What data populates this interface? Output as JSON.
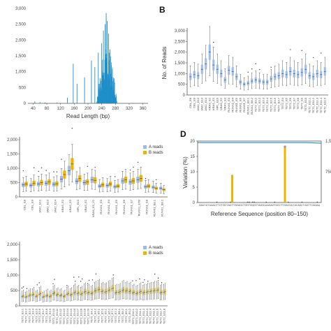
{
  "colors": {
    "blue": "#1f8fc8",
    "box_blue": "#9dbde6",
    "box_yellow": "#f0b400",
    "median": "#2c3e70",
    "line": "#1f8fc8"
  },
  "chart_data": [
    {
      "id": "A",
      "type": "bar",
      "panel_label": "",
      "xlabel": "Read Length (bp)",
      "ylabel": "",
      "xlim": [
        25,
        375
      ],
      "ylim": [
        0,
        3000
      ],
      "xticks": [
        40,
        80,
        120,
        160,
        200,
        240,
        280,
        320,
        360
      ],
      "yticks": [
        0,
        500,
        1000,
        1500,
        2000,
        2500,
        3000
      ],
      "ytick_labels": [
        "0",
        "500",
        "1,000",
        "1,500",
        "2,000",
        "2,500",
        "3,000"
      ],
      "spikes": [
        {
          "x": 45,
          "y": 60
        },
        {
          "x": 60,
          "y": 40
        },
        {
          "x": 75,
          "y": 30
        },
        {
          "x": 110,
          "y": 30
        },
        {
          "x": 140,
          "y": 180
        },
        {
          "x": 157,
          "y": 1250
        },
        {
          "x": 168,
          "y": 620
        },
        {
          "x": 190,
          "y": 820
        },
        {
          "x": 210,
          "y": 1350
        },
        {
          "x": 220,
          "y": 1150
        },
        {
          "x": 230,
          "y": 1600
        },
        {
          "x": 240,
          "y": 1900
        },
        {
          "x": 245,
          "y": 2300
        },
        {
          "x": 250,
          "y": 2500
        },
        {
          "x": 253,
          "y": 2850
        },
        {
          "x": 256,
          "y": 2600
        },
        {
          "x": 260,
          "y": 2200
        },
        {
          "x": 264,
          "y": 1700
        },
        {
          "x": 268,
          "y": 1200
        },
        {
          "x": 272,
          "y": 700
        },
        {
          "x": 278,
          "y": 250
        }
      ],
      "mass_start": 200,
      "mass_end": 285,
      "mass_peak": 255
    },
    {
      "id": "B",
      "type": "box",
      "panel_label": "B",
      "xlabel": "",
      "ylabel": "No. of Reads",
      "ylim": [
        0,
        3000
      ],
      "yticks": [
        0,
        500,
        1000,
        1500,
        2000,
        2500,
        3000
      ],
      "ytick_labels": [
        "0",
        "500",
        "1,000",
        "1,500",
        "2,000",
        "2,500",
        "3,000"
      ],
      "categories": [
        "CBL_E8",
        "CBL_E9",
        "JAK2_E12",
        "JAK2_E13",
        "JAK2_E14",
        "KRAS_E2",
        "KRAS_E3",
        "MPL_E10",
        "NRAS_E2",
        "NRAS_E3",
        "RUNX1_E3",
        "RUNX1_E4",
        "RUNX1_E5",
        "RUNX1_E6",
        "RUNX1_E7",
        "RUNX1_E8.1",
        "RUNX1_E8.2",
        "TET2_E3.1",
        "TET2_E3.2",
        "TET2_E3.3",
        "TET2_E3.4",
        "TET2_E3.5",
        "TET2_E3.6",
        "TET2_E3.7",
        "TET2_E4",
        "TET2_E5",
        "TET2_E6",
        "TET2_E7",
        "TET2_E8",
        "TET2_E9",
        "TET2_E10",
        "TET2_E11.1",
        "TET2_E11.2",
        "TET2_E11.3",
        "TET2_E11.4",
        "TET2_E11.5"
      ],
      "series": [
        {
          "name": "",
          "color": "box_blue",
          "medians": [
            850,
            950,
            900,
            1200,
            1450,
            2000,
            1400,
            1200,
            1000,
            700,
            1150,
            1100,
            850,
            600,
            500,
            550,
            650,
            700,
            650,
            600,
            600,
            750,
            850,
            900,
            1000,
            950,
            1100,
            1000,
            950,
            1050,
            1200,
            900,
            850,
            1000,
            950,
            1100
          ]
        }
      ]
    },
    {
      "id": "C",
      "type": "box",
      "panel_label": "",
      "xlabel": "",
      "ylabel": "",
      "ylim": [
        0,
        2000
      ],
      "yticks": [
        0,
        500,
        1000,
        1500,
        2000
      ],
      "ytick_labels": [
        "0",
        "500",
        "1,000",
        "1,500",
        "2,000"
      ],
      "categories": [
        "CBL_E8",
        "CBL_E9",
        "JAK2_E12",
        "JAK2_E13",
        "JAK2_E14",
        "KRAS_E2",
        "KRAS_E3",
        "MPL_E10",
        "NRAS_E2",
        "NRAS_E3_V2",
        "RUNX1_E3",
        "RUNX1_E4",
        "RUNX1_E5",
        "RUNX1_E6",
        "RUNX1_E7",
        "RUNX1_E7B",
        "RUNX1_E8",
        "RUNX1_E8.1",
        "RUNX1_E8.2"
      ],
      "legend": [
        "A reads",
        "B reads"
      ],
      "series": [
        {
          "name": "A reads",
          "color": "box_blue",
          "medians": [
            420,
            400,
            450,
            480,
            440,
            620,
            920,
            550,
            500,
            600,
            380,
            400,
            360,
            560,
            520,
            600,
            360,
            340,
            300
          ]
        },
        {
          "name": "B reads",
          "color": "box_yellow",
          "medians": [
            450,
            480,
            500,
            520,
            460,
            780,
            1150,
            640,
            520,
            580,
            420,
            450,
            380,
            600,
            560,
            650,
            380,
            300,
            250
          ]
        }
      ]
    },
    {
      "id": "D",
      "type": "bar",
      "panel_label": "D",
      "xlabel": "Reference Sequence (position 80–150)",
      "ylabel": "Variation (%)",
      "ylim": [
        0,
        20
      ],
      "yticks": [
        0,
        5,
        10,
        15,
        20
      ],
      "y2ticks_labels": [
        "750",
        "1,5"
      ],
      "sequence": "GAATATAAACTTGTGGTAGTTGGAGCTGGTGGCGTAGGCAAGAGTGCCTTGACGATACAGCTAATTCAGAA",
      "bars": [
        {
          "pos": 19,
          "value": 9
        },
        {
          "pos": 50,
          "value": 18.5
        }
      ],
      "line_value": 19.5
    },
    {
      "id": "E",
      "type": "box",
      "panel_label": "",
      "xlabel": "",
      "ylabel": "",
      "ylim": [
        0,
        2000
      ],
      "yticks": [
        0,
        500,
        1000,
        1500,
        2000
      ],
      "ytick_labels": [
        "0",
        "500",
        "1,000",
        "1,500",
        "2,000"
      ],
      "legend": [
        "A reads",
        "B reads"
      ],
      "categories": [
        "TET2_E3.1",
        "TET2_E3.2",
        "TET2_E3.3",
        "TET2_E3.4",
        "TET2_E3.5",
        "TET2_E3.6",
        "TET2_E3.7",
        "TET2_E3.8",
        "TET2_E3.9",
        "TET2_E3.10",
        "TET2_E3.11",
        "TET2_E3.12",
        "TET2_E3.13",
        "TET2_E3.14",
        "TET2_E3.15",
        "TET2_E3.16",
        "TET2_E3.17",
        "TET2_E3.18",
        "TET2_E3.19",
        "TET2_E3.20",
        "TET2_E4.1",
        "TET2_E4.2",
        "TET2_E5.1",
        "TET2_E5.2",
        "TET2_E6.1",
        "TET2_E6.2",
        "TET2_E7.1",
        "TET2_E7.2",
        "TET2_E8.1",
        "TET2_E8.2",
        "TET2_E9.1",
        "TET2_E9.2",
        "TET2_E10.1",
        "TET2_E10.2",
        "TET2_E11.1",
        "TET2_E11.2",
        "TET2_E11.3",
        "TET2_E11.4",
        "TET2_E11.5",
        "TET2_E11.6",
        "TET2_E11.7",
        "TET2_E11.8"
      ],
      "series": [
        {
          "name": "A reads",
          "color": "box_blue",
          "medians": [
            300,
            280,
            320,
            350,
            300,
            380,
            280,
            320,
            300,
            400,
            350,
            330,
            300,
            380,
            350,
            420,
            400,
            380,
            450,
            420,
            400,
            480,
            520,
            460,
            450,
            500,
            560,
            420,
            440,
            500,
            480,
            460,
            420,
            400,
            450,
            420,
            440,
            460,
            480,
            500,
            420,
            440
          ]
        },
        {
          "name": "B reads",
          "color": "box_yellow",
          "medians": [
            320,
            300,
            350,
            380,
            320,
            400,
            300,
            340,
            320,
            420,
            370,
            350,
            320,
            400,
            370,
            450,
            420,
            400,
            470,
            440,
            420,
            500,
            540,
            480,
            470,
            520,
            580,
            440,
            460,
            520,
            500,
            480,
            440,
            420,
            470,
            440,
            460,
            480,
            500,
            520,
            440,
            460
          ]
        }
      ]
    }
  ]
}
